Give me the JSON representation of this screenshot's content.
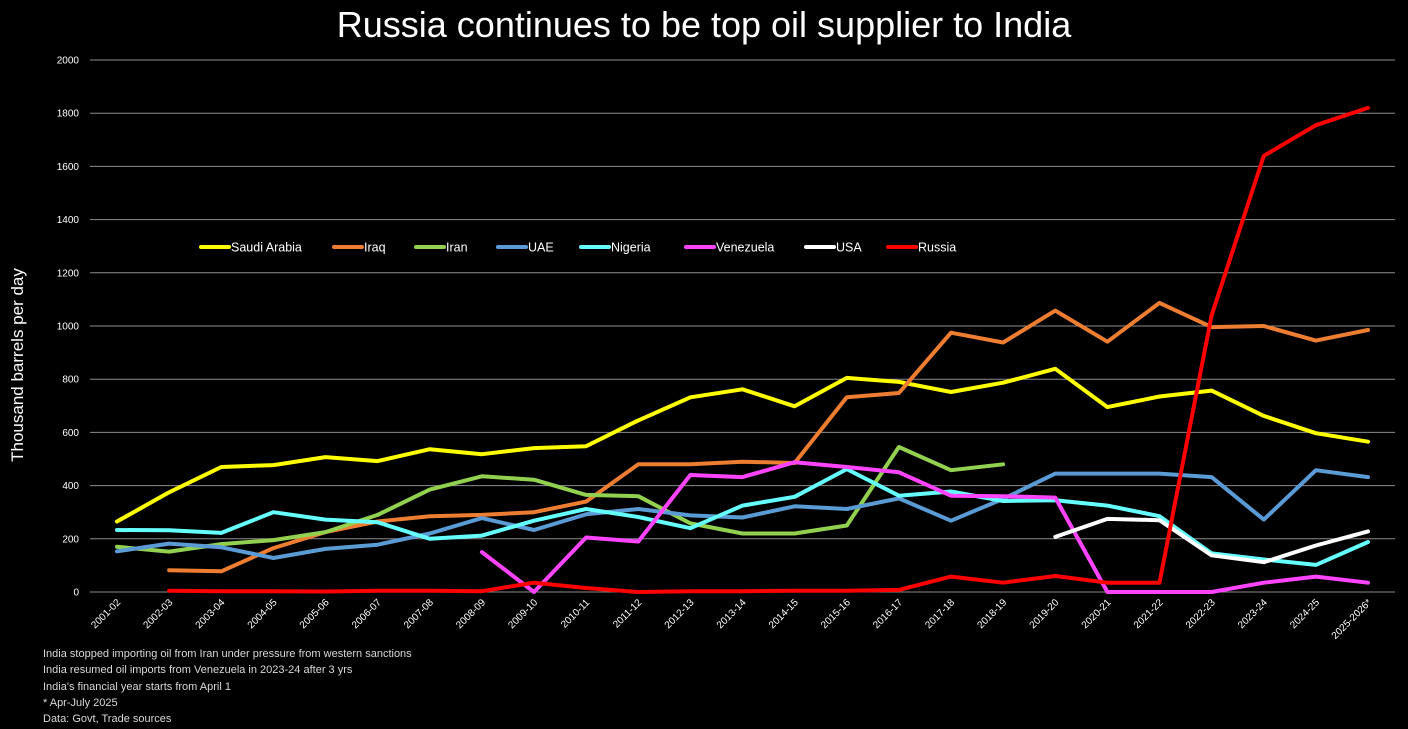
{
  "chart_data": {
    "type": "line",
    "title": "Russia continues to be top oil supplier to India",
    "xlabel": "",
    "ylabel": "Thousand barrels per day",
    "ylim": [
      0,
      2000
    ],
    "yticks": [
      "0",
      "200",
      "400",
      "600",
      "800",
      "1000",
      "1200",
      "1400",
      "1600",
      "1800",
      "2000"
    ],
    "grid": true,
    "legend": "top-left",
    "categories": [
      "2001-02",
      "2002-03",
      "2003-04",
      "2004-05",
      "2005-06",
      "2006-07",
      "2007-08",
      "2008-09",
      "2009-10",
      "2010-11",
      "2011-12",
      "2012-13",
      "2013-14",
      "2014-15",
      "2015-16",
      "2016-17",
      "2017-18",
      "2018-19",
      "2019-20",
      "2020-21",
      "2021-22",
      "2022-23",
      "2023-24",
      "2024-25",
      "2025-2026*"
    ],
    "series": [
      {
        "name": "Saudi Arabia",
        "color": "#ffff00",
        "values": [
          265,
          375,
          470,
          477,
          507,
          492,
          537,
          518,
          541,
          548,
          645,
          732,
          762,
          698,
          805,
          790,
          752,
          787,
          839,
          695,
          735,
          757,
          662,
          597,
          565
        ]
      },
      {
        "name": "Iraq",
        "color": "#ed7d31",
        "values": [
          null,
          82,
          78,
          165,
          225,
          265,
          285,
          290,
          300,
          340,
          480,
          480,
          490,
          485,
          732,
          748,
          975,
          938,
          1058,
          941,
          1087,
          996,
          1000,
          945,
          985
        ]
      },
      {
        "name": "Iran",
        "color": "#92d050",
        "values": [
          170,
          152,
          180,
          195,
          225,
          290,
          385,
          435,
          422,
          365,
          360,
          258,
          220,
          220,
          250,
          545,
          458,
          480,
          null,
          null,
          null,
          null,
          null,
          null,
          null
        ]
      },
      {
        "name": "UAE",
        "color": "#5b9bd5",
        "values": [
          153,
          182,
          168,
          128,
          162,
          178,
          220,
          278,
          233,
          292,
          312,
          288,
          280,
          322,
          312,
          352,
          268,
          350,
          445,
          445,
          445,
          432,
          272,
          458,
          432
        ]
      },
      {
        "name": "Nigeria",
        "color": "#66ffff",
        "values": [
          233,
          232,
          222,
          300,
          272,
          262,
          200,
          212,
          268,
          312,
          282,
          240,
          325,
          358,
          462,
          362,
          378,
          342,
          345,
          325,
          285,
          145,
          122,
          102,
          188
        ]
      },
      {
        "name": "Venezuela",
        "color": "#ff44ff",
        "values": [
          null,
          null,
          null,
          null,
          null,
          null,
          null,
          150,
          0,
          205,
          190,
          440,
          432,
          488,
          470,
          450,
          362,
          360,
          355,
          0,
          0,
          0,
          35,
          58,
          35
        ]
      },
      {
        "name": "USA",
        "color": "#ffffff",
        "values": [
          null,
          null,
          null,
          null,
          null,
          null,
          null,
          null,
          null,
          null,
          null,
          null,
          null,
          null,
          null,
          null,
          null,
          null,
          207,
          275,
          270,
          138,
          112,
          175,
          228
        ]
      },
      {
        "name": "Russia",
        "color": "#ff0000",
        "values": [
          null,
          5,
          3,
          3,
          2,
          5,
          5,
          3,
          35,
          15,
          0,
          3,
          3,
          5,
          5,
          8,
          58,
          35,
          60,
          35,
          35,
          1040,
          1640,
          1755,
          1820
        ]
      }
    ]
  },
  "footnotes": [
    "India stopped importing oil from Iran under pressure from western sanctions",
    "India resumed oil imports from Venezuela in 2023-24 after 3 yrs",
    "India's financial year starts from April 1",
    "* Apr-July 2025",
    "Data: Govt, Trade sources"
  ]
}
